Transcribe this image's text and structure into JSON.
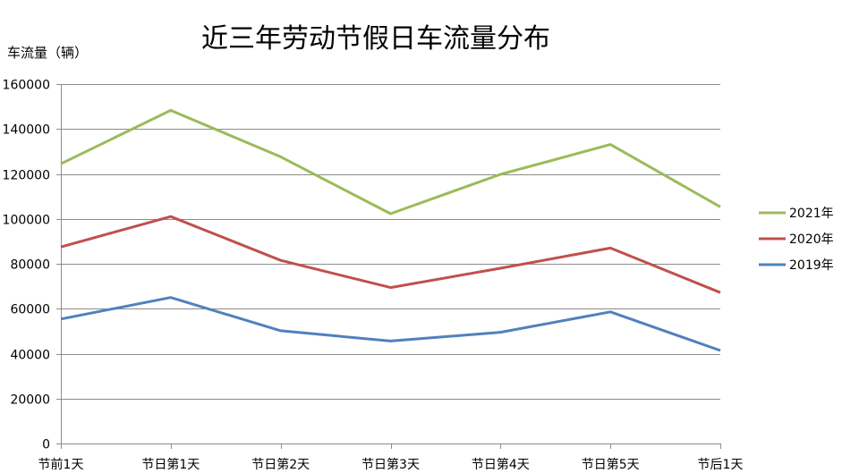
{
  "chart_data": {
    "type": "line",
    "title": "近三年劳动节假日车流量分布",
    "ylabel": "车流量（辆）",
    "xlabel": "",
    "categories": [
      "节前1天",
      "节日第1天",
      "节日第2天",
      "节日第3天",
      "节日第4天",
      "节日第5天",
      "节后1天"
    ],
    "ylim": [
      0,
      160000
    ],
    "yticks": [
      0,
      20000,
      40000,
      60000,
      80000,
      100000,
      120000,
      140000,
      160000
    ],
    "ytick_labels": [
      "0",
      "20000",
      "40000",
      "60000",
      "80000",
      "100000",
      "120000",
      "140000",
      "160000"
    ],
    "grid": true,
    "legend_position": "right",
    "series": [
      {
        "name": "2021年",
        "color": "#9bbb59",
        "values": [
          124500,
          148300,
          127600,
          102300,
          119800,
          133100,
          105300
        ]
      },
      {
        "name": "2020年",
        "color": "#c0504d",
        "values": [
          87500,
          101000,
          81500,
          69400,
          78000,
          87000,
          67200
        ]
      },
      {
        "name": "2019年",
        "color": "#4f81bd",
        "values": [
          55400,
          65000,
          50200,
          45600,
          49500,
          58600,
          41400
        ]
      }
    ]
  }
}
